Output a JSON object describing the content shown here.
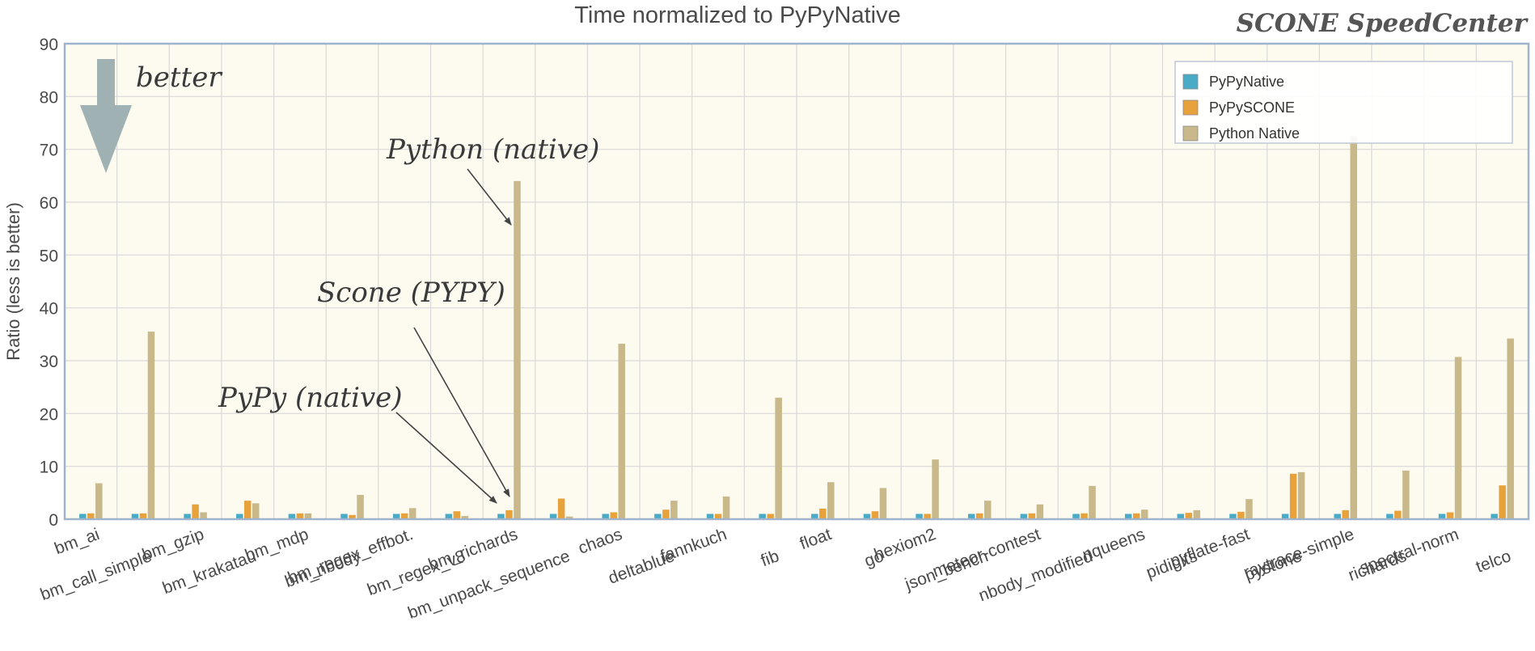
{
  "chart_data": {
    "type": "bar",
    "title": "Time normalized to PyPyNative",
    "brand": "SCONE SpeedCenter",
    "ylabel": "Ratio  (less is better)",
    "xlabel": "",
    "ylim": [
      0,
      90
    ],
    "yticks": [
      0,
      10,
      20,
      30,
      40,
      50,
      60,
      70,
      80,
      90
    ],
    "grid": true,
    "legend_position": "top-right",
    "better_label": "better",
    "annotations": [
      {
        "text": "Python (native)",
        "target": "bm_richards",
        "series": "Python Native"
      },
      {
        "text": "Scone (PYPY)",
        "target": "bm_richards",
        "series": "PyPySCONE"
      },
      {
        "text": "PyPy (native)",
        "target": "bm_richards",
        "series": "PyPyNative"
      }
    ],
    "categories": [
      "bm_ai",
      "bm_call_simple",
      "bm_gzip",
      "bm_krakatau",
      "bm_mdp",
      "bm_nbody",
      "bm_regex_effbot.",
      "bm_regex_v8",
      "bm_richards",
      "bm_unpack_sequence",
      "chaos",
      "deltablue",
      "fannkuch",
      "fib",
      "float",
      "go",
      "hexiom2",
      "json_bench",
      "meteor-contest",
      "nbody_modified",
      "nqueens",
      "pidigits",
      "pyflate-fast",
      "pystone",
      "raytrace-simple",
      "richards",
      "spectral-norm",
      "telco"
    ],
    "series": [
      {
        "name": "PyPyNative",
        "color": "#4aabc6",
        "values": [
          1,
          1,
          1,
          1,
          1,
          1,
          1,
          1,
          1,
          1,
          1,
          1,
          1,
          1,
          1,
          1,
          1,
          1,
          1,
          1,
          1,
          1,
          1,
          1,
          1,
          1,
          1,
          1
        ]
      },
      {
        "name": "PyPySCONE",
        "color": "#e8a23c",
        "values": [
          1.1,
          1.1,
          2.8,
          3.5,
          1.1,
          0.8,
          1.1,
          1.5,
          1.7,
          3.9,
          1.3,
          1.8,
          1.0,
          1.0,
          2.0,
          1.5,
          1.0,
          1.1,
          1.1,
          1.1,
          1.1,
          1.2,
          1.4,
          8.6,
          1.7,
          1.6,
          1.3,
          6.4
        ]
      },
      {
        "name": "Python Native",
        "color": "#c8b88a",
        "values": [
          6.8,
          35.5,
          1.3,
          3.0,
          1.1,
          4.6,
          2.1,
          0.6,
          64.0,
          0.5,
          33.2,
          3.5,
          4.3,
          23.0,
          7.0,
          5.9,
          11.3,
          3.5,
          2.8,
          6.3,
          1.8,
          1.7,
          3.8,
          8.9,
          72.5,
          9.2,
          30.7,
          34.2
        ]
      }
    ]
  }
}
